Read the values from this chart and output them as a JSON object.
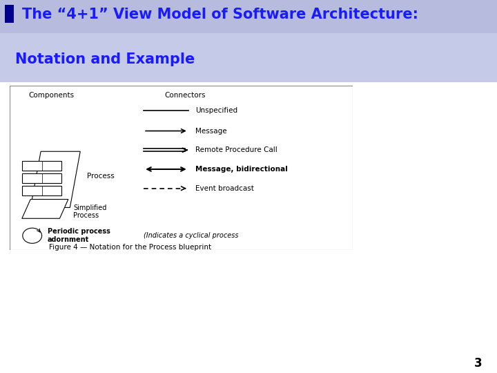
{
  "title_line1": "The “4+1” View Model of Software Architecture:",
  "title_line2": "Notation and Example",
  "title_color": "#1a1aff",
  "slide_bg": "#ffffff",
  "title_bg_top": "#c8cce8",
  "title_bg_bottom": "#9099cc",
  "page_number": "3",
  "components_label": "Components",
  "connectors_label": "Connectors",
  "figure_caption": "Figure 4 — Notation for the Process blueprint",
  "connector_labels": [
    "Unspecified",
    "Message",
    "Remote Procedure Call",
    "Message, bidirectional",
    "Event broadcast"
  ],
  "periodic_note": "(Indicates a cyclical process"
}
